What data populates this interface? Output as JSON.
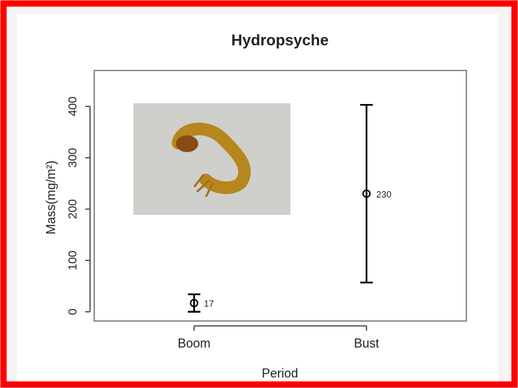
{
  "chart_data": {
    "type": "errorbar",
    "title": "Hydropsyche",
    "xlabel": "Period",
    "ylabel": "Mass(mg/m²)",
    "categories": [
      "Boom",
      "Bust"
    ],
    "values": [
      17,
      230
    ],
    "errors": [
      17,
      173
    ],
    "color": "#000000",
    "ylim": [
      -18,
      470
    ],
    "yticks": [
      0,
      100,
      200,
      300,
      400
    ],
    "grid": false
  }
}
